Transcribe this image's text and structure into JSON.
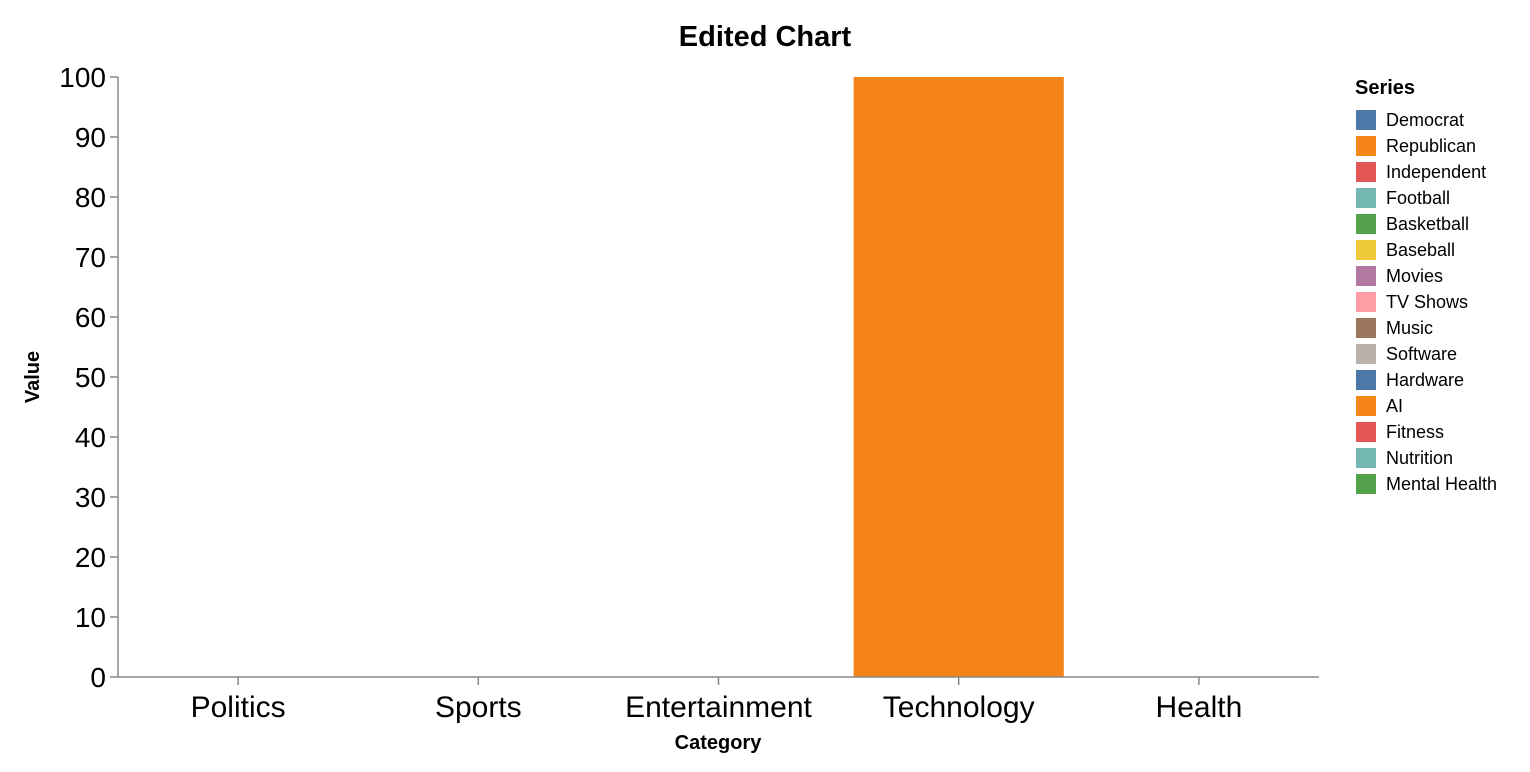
{
  "chart_data": {
    "type": "bar",
    "title": "Edited Chart",
    "xlabel": "Category",
    "ylabel": "Value",
    "ylim": [
      0,
      100
    ],
    "yticks": [
      0,
      10,
      20,
      30,
      40,
      50,
      60,
      70,
      80,
      90,
      100
    ],
    "categories": [
      "Politics",
      "Sports",
      "Entertainment",
      "Technology",
      "Health"
    ],
    "legend_title": "Series",
    "legend_position": "right",
    "grid": false,
    "series": [
      {
        "name": "Democrat",
        "color": "#4c78a8",
        "values": [
          0,
          0,
          0,
          0,
          0
        ]
      },
      {
        "name": "Republican",
        "color": "#f58518",
        "values": [
          0,
          0,
          0,
          100,
          0
        ]
      },
      {
        "name": "Independent",
        "color": "#e45756",
        "values": [
          0,
          0,
          0,
          0,
          0
        ]
      },
      {
        "name": "Football",
        "color": "#72b7b2",
        "values": [
          0,
          0,
          0,
          0,
          0
        ]
      },
      {
        "name": "Basketball",
        "color": "#54a24b",
        "values": [
          0,
          0,
          0,
          0,
          0
        ]
      },
      {
        "name": "Baseball",
        "color": "#eeca3b",
        "values": [
          0,
          0,
          0,
          0,
          0
        ]
      },
      {
        "name": "Movies",
        "color": "#b279a2",
        "values": [
          0,
          0,
          0,
          0,
          0
        ]
      },
      {
        "name": "TV Shows",
        "color": "#ff9da6",
        "values": [
          0,
          0,
          0,
          0,
          0
        ]
      },
      {
        "name": "Music",
        "color": "#9d755d",
        "values": [
          0,
          0,
          0,
          0,
          0
        ]
      },
      {
        "name": "Software",
        "color": "#bab0ac",
        "values": [
          0,
          0,
          0,
          0,
          0
        ]
      },
      {
        "name": "Hardware",
        "color": "#4c78a8",
        "values": [
          0,
          0,
          0,
          0,
          0
        ]
      },
      {
        "name": "AI",
        "color": "#f58518",
        "values": [
          0,
          0,
          0,
          0,
          0
        ]
      },
      {
        "name": "Fitness",
        "color": "#e45756",
        "values": [
          0,
          0,
          0,
          0,
          0
        ]
      },
      {
        "name": "Nutrition",
        "color": "#72b7b2",
        "values": [
          0,
          0,
          0,
          0,
          0
        ]
      },
      {
        "name": "Mental Health",
        "color": "#54a24b",
        "values": [
          0,
          0,
          0,
          0,
          0
        ]
      }
    ]
  }
}
